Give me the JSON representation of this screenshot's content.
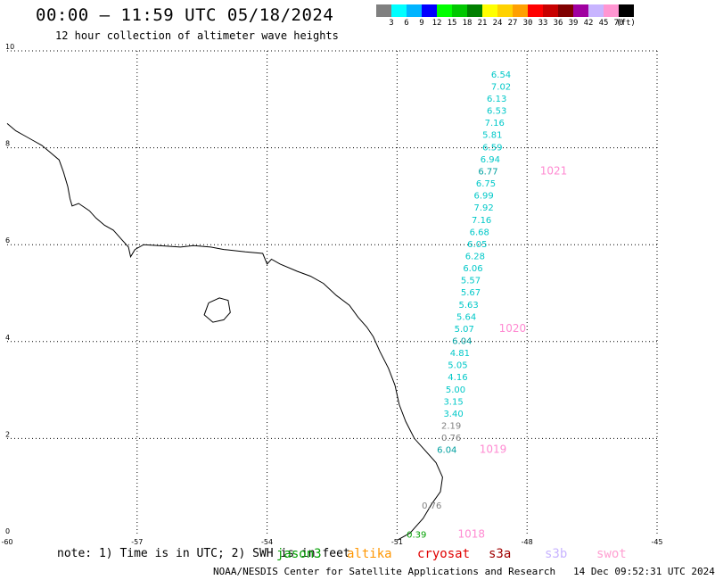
{
  "header": {
    "title": "00:00 — 11:59 UTC 05/18/2024",
    "subtitle": "12 hour collection of altimeter wave heights"
  },
  "legend": {
    "colors": [
      "#808080",
      "#00ffff",
      "#00b4ff",
      "#0000ff",
      "#00ff00",
      "#00c800",
      "#008000",
      "#ffff00",
      "#ffd200",
      "#ffa000",
      "#ff0000",
      "#c80000",
      "#800000",
      "#a000a0",
      "#c8b4ff",
      "#ff96d2",
      "#000000"
    ],
    "labels": [
      "3",
      "6",
      "9",
      "12",
      "15",
      "18",
      "21",
      "24",
      "27",
      "30",
      "33",
      "36",
      "39",
      "42",
      "45",
      "70",
      "(ft)"
    ]
  },
  "map": {
    "x_ticks": [
      "-60",
      "-57",
      "-54",
      "-51",
      "-48",
      "-45"
    ],
    "y_ticks": [
      "10",
      "8",
      "6",
      "4",
      "2",
      "0"
    ],
    "x_values": [
      -60,
      -57,
      -54,
      -51,
      -48,
      -45
    ],
    "y_values": [
      10,
      8,
      6,
      4,
      2,
      0
    ],
    "grid": true,
    "line_color": "#000000",
    "cyan": "#00c8c8",
    "teal": "#00a0a0",
    "gray": "#808080",
    "green": "#00a000",
    "pink": "#ff8ad2",
    "wave_heights": [
      {
        "v": "6.54",
        "lon": -48.6,
        "lat": 9.45,
        "c": "cyan"
      },
      {
        "v": "7.02",
        "lon": -48.6,
        "lat": 9.2,
        "c": "cyan"
      },
      {
        "v": "6.13",
        "lon": -48.7,
        "lat": 8.95,
        "c": "cyan"
      },
      {
        "v": "6.53",
        "lon": -48.7,
        "lat": 8.7,
        "c": "cyan"
      },
      {
        "v": "7.16",
        "lon": -48.75,
        "lat": 8.45,
        "c": "cyan"
      },
      {
        "v": "5.81",
        "lon": -48.8,
        "lat": 8.2,
        "c": "cyan"
      },
      {
        "v": "6.59",
        "lon": -48.8,
        "lat": 7.95,
        "c": "cyan"
      },
      {
        "v": "6.94",
        "lon": -48.85,
        "lat": 7.7,
        "c": "cyan"
      },
      {
        "v": "6.77",
        "lon": -48.9,
        "lat": 7.45,
        "c": "teal"
      },
      {
        "v": "6.75",
        "lon": -48.95,
        "lat": 7.2,
        "c": "cyan"
      },
      {
        "v": "6.99",
        "lon": -49.0,
        "lat": 6.95,
        "c": "cyan"
      },
      {
        "v": "7.92",
        "lon": -49.0,
        "lat": 6.7,
        "c": "cyan"
      },
      {
        "v": "7.16",
        "lon": -49.05,
        "lat": 6.45,
        "c": "cyan"
      },
      {
        "v": "6.68",
        "lon": -49.1,
        "lat": 6.2,
        "c": "cyan"
      },
      {
        "v": "6.05",
        "lon": -49.15,
        "lat": 5.95,
        "c": "cyan"
      },
      {
        "v": "6.28",
        "lon": -49.2,
        "lat": 5.7,
        "c": "cyan"
      },
      {
        "v": "6.06",
        "lon": -49.25,
        "lat": 5.45,
        "c": "cyan"
      },
      {
        "v": "5.57",
        "lon": -49.3,
        "lat": 5.2,
        "c": "cyan"
      },
      {
        "v": "5.67",
        "lon": -49.3,
        "lat": 4.95,
        "c": "cyan"
      },
      {
        "v": "5.63",
        "lon": -49.35,
        "lat": 4.7,
        "c": "cyan"
      },
      {
        "v": "5.64",
        "lon": -49.4,
        "lat": 4.45,
        "c": "cyan"
      },
      {
        "v": "5.07",
        "lon": -49.45,
        "lat": 4.2,
        "c": "cyan"
      },
      {
        "v": "6.04",
        "lon": -49.5,
        "lat": 3.95,
        "c": "teal"
      },
      {
        "v": "4.81",
        "lon": -49.55,
        "lat": 3.7,
        "c": "cyan"
      },
      {
        "v": "5.05",
        "lon": -49.6,
        "lat": 3.45,
        "c": "cyan"
      },
      {
        "v": "4.16",
        "lon": -49.6,
        "lat": 3.2,
        "c": "cyan"
      },
      {
        "v": "5.00",
        "lon": -49.65,
        "lat": 2.95,
        "c": "cyan"
      },
      {
        "v": "3.15",
        "lon": -49.7,
        "lat": 2.7,
        "c": "cyan"
      },
      {
        "v": "3.40",
        "lon": -49.7,
        "lat": 2.45,
        "c": "cyan"
      },
      {
        "v": "2.19",
        "lon": -49.75,
        "lat": 2.2,
        "c": "gray"
      },
      {
        "v": "0.76",
        "lon": -49.75,
        "lat": 1.95,
        "c": "gray"
      },
      {
        "v": "6.04",
        "lon": -49.85,
        "lat": 1.7,
        "c": "teal"
      },
      {
        "v": "0.76",
        "lon": -50.2,
        "lat": 0.55,
        "c": "gray"
      },
      {
        "v": "0.39",
        "lon": -50.55,
        "lat": -0.05,
        "c": "green"
      }
    ],
    "pressures": [
      {
        "v": "1021",
        "lon": -47.7,
        "lat": 7.45
      },
      {
        "v": "1020",
        "lon": -48.65,
        "lat": 4.2
      },
      {
        "v": "1019",
        "lon": -49.1,
        "lat": 1.7
      },
      {
        "v": "1018",
        "lon": -49.6,
        "lat": -0.05
      }
    ],
    "coast": [
      [
        -60,
        8.5
      ],
      [
        -59.8,
        8.35
      ],
      [
        -59.6,
        8.25
      ],
      [
        -59.4,
        8.15
      ],
      [
        -59.2,
        8.05
      ],
      [
        -59.0,
        7.9
      ],
      [
        -58.8,
        7.75
      ],
      [
        -58.7,
        7.5
      ],
      [
        -58.6,
        7.2
      ],
      [
        -58.55,
        6.95
      ],
      [
        -58.5,
        6.8
      ],
      [
        -58.35,
        6.85
      ],
      [
        -58.1,
        6.7
      ],
      [
        -57.95,
        6.55
      ],
      [
        -57.75,
        6.4
      ],
      [
        -57.55,
        6.3
      ],
      [
        -57.35,
        6.1
      ],
      [
        -57.2,
        5.95
      ],
      [
        -57.15,
        5.75
      ],
      [
        -57.05,
        5.9
      ],
      [
        -56.85,
        6.0
      ],
      [
        -56.5,
        5.98
      ],
      [
        -56.0,
        5.95
      ],
      [
        -55.7,
        5.98
      ],
      [
        -55.3,
        5.95
      ],
      [
        -55.0,
        5.9
      ],
      [
        -54.5,
        5.85
      ],
      [
        -54.1,
        5.82
      ],
      [
        -54.0,
        5.6
      ],
      [
        -53.9,
        5.7
      ],
      [
        -53.7,
        5.6
      ],
      [
        -53.3,
        5.45
      ],
      [
        -53.0,
        5.35
      ],
      [
        -52.7,
        5.2
      ],
      [
        -52.4,
        4.95
      ],
      [
        -52.1,
        4.75
      ],
      [
        -51.9,
        4.5
      ],
      [
        -51.7,
        4.3
      ],
      [
        -51.55,
        4.1
      ],
      [
        -51.4,
        3.8
      ],
      [
        -51.2,
        3.45
      ],
      [
        -51.05,
        3.1
      ],
      [
        -50.95,
        2.7
      ],
      [
        -50.8,
        2.35
      ],
      [
        -50.6,
        2.0
      ],
      [
        -50.4,
        1.8
      ],
      [
        -50.1,
        1.5
      ],
      [
        -49.95,
        1.2
      ],
      [
        -50.0,
        0.9
      ],
      [
        -50.2,
        0.65
      ],
      [
        -50.4,
        0.35
      ],
      [
        -50.7,
        0.05
      ],
      [
        -51.0,
        -0.1
      ]
    ],
    "island": [
      [
        -55.35,
        4.8
      ],
      [
        -55.1,
        4.9
      ],
      [
        -54.9,
        4.85
      ],
      [
        -54.85,
        4.6
      ],
      [
        -55.0,
        4.45
      ],
      [
        -55.25,
        4.4
      ],
      [
        -55.45,
        4.55
      ],
      [
        -55.35,
        4.8
      ]
    ]
  },
  "footer": {
    "note": "note: 1) Time is in UTC; 2) SWH is in feet",
    "credit": "NOAA/NESDIS Center for Satellite Applications and Research   14 Dec 09:52:31 UTC 2024",
    "satellites": [
      {
        "name": "jason3",
        "color": "#00a000"
      },
      {
        "name": "altika",
        "color": "#ff9600"
      },
      {
        "name": "cryosat",
        "color": "#e00000"
      },
      {
        "name": "s3a",
        "color": "#a00000"
      },
      {
        "name": "s3b",
        "color": "#c8b4ff"
      },
      {
        "name": "swot",
        "color": "#ffa0d2"
      }
    ]
  }
}
